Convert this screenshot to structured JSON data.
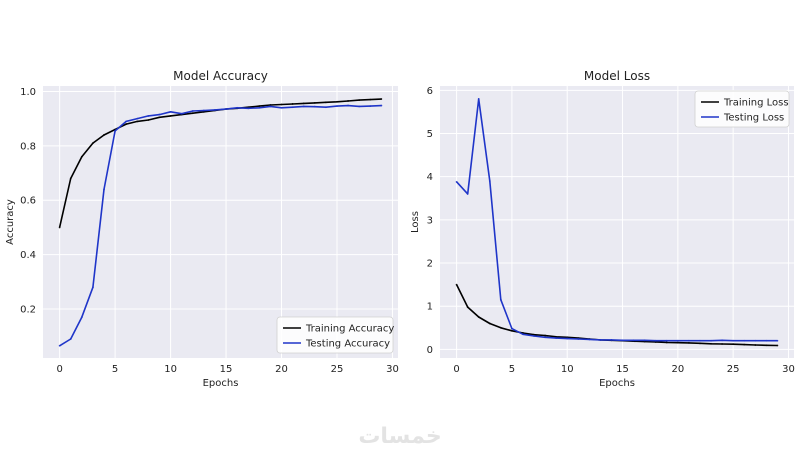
{
  "watermark": "خمسات",
  "chart_data": [
    {
      "type": "line",
      "title": "Model Accuracy",
      "xlabel": "Epochs",
      "ylabel": "Accuracy",
      "xlim": [
        -1.5,
        30.5
      ],
      "ylim": [
        0.02,
        1.02
      ],
      "xticks": [
        0,
        5,
        10,
        15,
        20,
        25,
        30
      ],
      "yticks": [
        0.2,
        0.4,
        0.6,
        0.8,
        1.0
      ],
      "ytick_labels": [
        "0.2",
        "0.4",
        "0.6",
        "0.8",
        "1.0"
      ],
      "grid": true,
      "legend_position": "lower-right",
      "x": [
        0,
        1,
        2,
        3,
        4,
        5,
        6,
        7,
        8,
        9,
        10,
        11,
        12,
        13,
        14,
        15,
        16,
        17,
        18,
        19,
        20,
        21,
        22,
        23,
        24,
        25,
        26,
        27,
        28,
        29
      ],
      "series": [
        {
          "name": "Training Accuracy",
          "color": "#000000",
          "values": [
            0.5,
            0.68,
            0.76,
            0.81,
            0.84,
            0.86,
            0.88,
            0.89,
            0.895,
            0.905,
            0.91,
            0.915,
            0.92,
            0.925,
            0.93,
            0.935,
            0.938,
            0.942,
            0.946,
            0.95,
            0.952,
            0.954,
            0.956,
            0.958,
            0.96,
            0.962,
            0.965,
            0.968,
            0.97,
            0.972
          ]
        },
        {
          "name": "Testing Accuracy",
          "color": "#1f35c9",
          "values": [
            0.065,
            0.09,
            0.17,
            0.28,
            0.64,
            0.855,
            0.89,
            0.9,
            0.91,
            0.915,
            0.925,
            0.918,
            0.928,
            0.93,
            0.932,
            0.935,
            0.94,
            0.938,
            0.94,
            0.945,
            0.94,
            0.942,
            0.945,
            0.944,
            0.942,
            0.946,
            0.948,
            0.945,
            0.946,
            0.948
          ]
        }
      ]
    },
    {
      "type": "line",
      "title": "Model Loss",
      "xlabel": "Epochs",
      "ylabel": "Loss",
      "xlim": [
        -1.5,
        30.5
      ],
      "ylim": [
        -0.2,
        6.1
      ],
      "xticks": [
        0,
        5,
        10,
        15,
        20,
        25,
        30
      ],
      "yticks": [
        0,
        1,
        2,
        3,
        4,
        5,
        6
      ],
      "ytick_labels": [
        "0",
        "1",
        "2",
        "3",
        "4",
        "5",
        "6"
      ],
      "grid": true,
      "legend_position": "upper-right",
      "x": [
        0,
        1,
        2,
        3,
        4,
        5,
        6,
        7,
        8,
        9,
        10,
        11,
        12,
        13,
        14,
        15,
        16,
        17,
        18,
        19,
        20,
        21,
        22,
        23,
        24,
        25,
        26,
        27,
        28,
        29
      ],
      "series": [
        {
          "name": "Training Loss",
          "color": "#000000",
          "values": [
            1.5,
            0.98,
            0.75,
            0.6,
            0.5,
            0.43,
            0.38,
            0.34,
            0.32,
            0.29,
            0.28,
            0.26,
            0.24,
            0.22,
            0.21,
            0.2,
            0.19,
            0.18,
            0.17,
            0.16,
            0.155,
            0.15,
            0.14,
            0.13,
            0.125,
            0.12,
            0.11,
            0.1,
            0.095,
            0.09
          ]
        },
        {
          "name": "Testing Loss",
          "color": "#1f35c9",
          "values": [
            3.88,
            3.6,
            5.8,
            3.9,
            1.15,
            0.48,
            0.35,
            0.31,
            0.28,
            0.26,
            0.25,
            0.24,
            0.23,
            0.22,
            0.22,
            0.21,
            0.21,
            0.21,
            0.2,
            0.2,
            0.2,
            0.2,
            0.2,
            0.2,
            0.21,
            0.2,
            0.2,
            0.2,
            0.2,
            0.2
          ]
        }
      ]
    }
  ]
}
